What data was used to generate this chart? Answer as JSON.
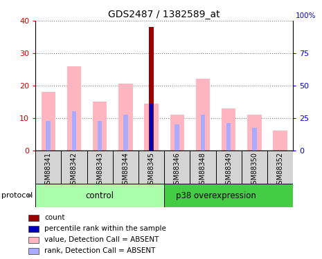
{
  "title": "GDS2487 / 1382589_at",
  "samples": [
    "GSM88341",
    "GSM88342",
    "GSM88343",
    "GSM88344",
    "GSM88345",
    "GSM88346",
    "GSM88348",
    "GSM88349",
    "GSM88350",
    "GSM88352"
  ],
  "n_control": 5,
  "n_overexp": 5,
  "value_absent": [
    18.0,
    26.0,
    15.0,
    20.5,
    14.5,
    11.0,
    22.0,
    13.0,
    11.0,
    6.0
  ],
  "rank_absent": [
    9.0,
    12.0,
    9.0,
    11.0,
    0.0,
    8.0,
    11.0,
    8.5,
    7.0,
    0.0
  ],
  "count": [
    0,
    0,
    0,
    0,
    38.0,
    0,
    0,
    0,
    0,
    0
  ],
  "percentile_rank_scaled": [
    0,
    0,
    0,
    0,
    14.5,
    0,
    0,
    0,
    0,
    0
  ],
  "ylim_left": [
    0,
    40
  ],
  "ylim_right": [
    0,
    100
  ],
  "color_value_absent": "#FFB6C1",
  "color_rank_absent": "#AAAAFF",
  "color_count": "#990000",
  "color_percentile": "#0000BB",
  "color_left_axis": "#CC0000",
  "color_right_axis": "#0000CC",
  "color_control_bg": "#AAFFAA",
  "color_overexp_bg": "#44CC44",
  "color_sample_bg": "#D4D4D4",
  "group_label_control": "control",
  "group_label_overexp": "p38 overexpression",
  "protocol_label": "protocol",
  "legend_items": [
    {
      "color": "#990000",
      "label": "count"
    },
    {
      "color": "#0000BB",
      "label": "percentile rank within the sample"
    },
    {
      "color": "#FFB6C1",
      "label": "value, Detection Call = ABSENT"
    },
    {
      "color": "#AAAAFF",
      "label": "rank, Detection Call = ABSENT"
    }
  ]
}
